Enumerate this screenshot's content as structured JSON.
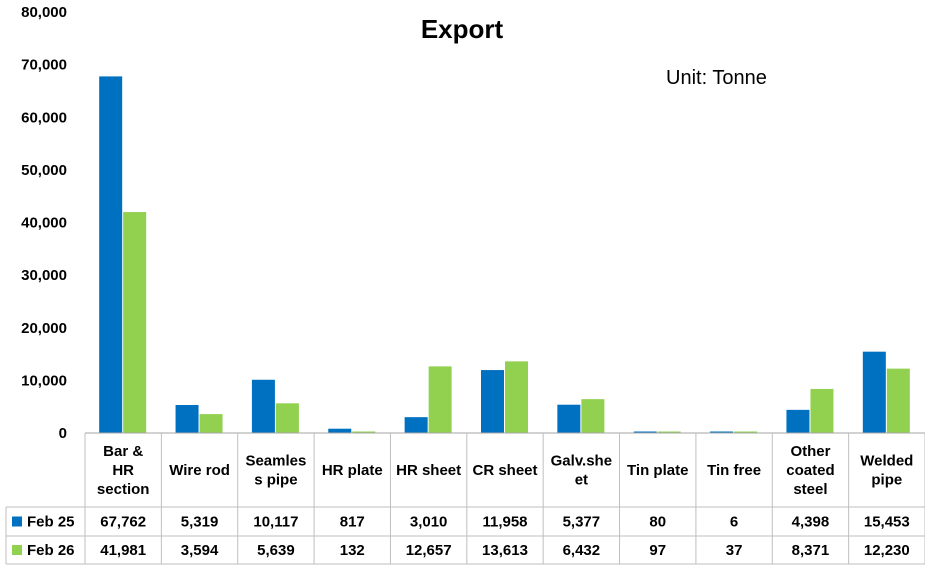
{
  "chart_data": {
    "type": "bar",
    "title": "Export",
    "unit_note": "Unit: Tonne",
    "categories": [
      [
        "Bar &",
        "HR",
        "section"
      ],
      [
        "Wire rod"
      ],
      [
        "Seamles",
        "s pipe"
      ],
      [
        "HR plate"
      ],
      [
        "HR sheet"
      ],
      [
        "CR sheet"
      ],
      [
        "Galv.she",
        "et"
      ],
      [
        "Tin plate"
      ],
      [
        "Tin free"
      ],
      [
        "Other",
        "coated",
        "steel"
      ],
      [
        "Welded",
        "pipe"
      ]
    ],
    "series": [
      {
        "name": "Feb 25",
        "color": "#0070C0",
        "values": [
          67762,
          5319,
          10117,
          817,
          3010,
          11958,
          5377,
          80,
          6,
          4398,
          15453
        ],
        "labels": [
          "67,762",
          "5,319",
          "10,117",
          "817",
          "3,010",
          "11,958",
          "5,377",
          "80",
          "6",
          "4,398",
          "15,453"
        ]
      },
      {
        "name": "Feb 26",
        "color": "#92D050",
        "values": [
          41981,
          3594,
          5639,
          132,
          12657,
          13613,
          6432,
          97,
          37,
          8371,
          12230
        ],
        "labels": [
          "41,981",
          "3,594",
          "5,639",
          "132",
          "12,657",
          "13,613",
          "6,432",
          "97",
          "37",
          "8,371",
          "12,230"
        ]
      }
    ],
    "yticks": [
      "0",
      "10,000",
      "20,000",
      "30,000",
      "40,000",
      "50,000",
      "60,000",
      "70,000",
      "80,000"
    ],
    "ylim": [
      0,
      80000
    ],
    "grid": false,
    "legend": "data-table"
  }
}
